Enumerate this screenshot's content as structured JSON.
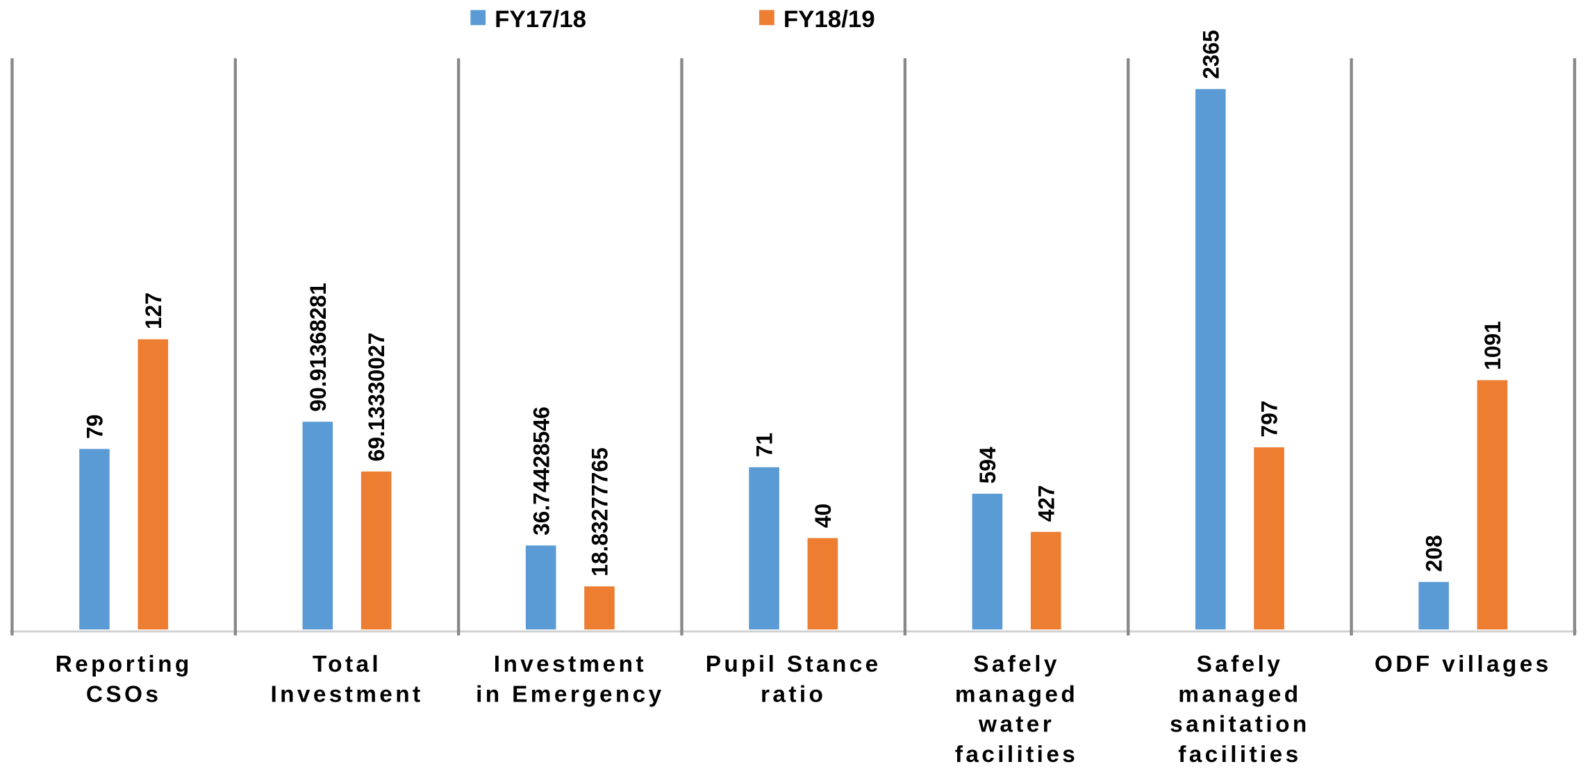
{
  "chart_data": [
    {
      "type": "bar",
      "categories": [
        "Reporting\nCSOs",
        "Total\nInvestment",
        "Investment\nin Emergency",
        "Pupil Stance\nratio"
      ],
      "series": [
        {
          "name": "FY17/18",
          "color": "#5b9bd5",
          "values": [
            79,
            90.91368281,
            36.74428546,
            71
          ]
        },
        {
          "name": "FY18/19",
          "color": "#ed7d31",
          "values": [
            127,
            69.13330027,
            18.83277765,
            40
          ]
        }
      ],
      "ylim": [
        0,
        250
      ]
    },
    {
      "type": "bar",
      "categories": [
        "Safely\nmanaged\nwater\nfacilities",
        "Safely\nmanaged\nsanitation\nfacilities",
        "ODF villages"
      ],
      "series": [
        {
          "name": "FY17/18",
          "color": "#5b9bd5",
          "values": [
            594,
            2365,
            208
          ]
        },
        {
          "name": "FY18/19",
          "color": "#ed7d31",
          "values": [
            427,
            797,
            1091
          ]
        }
      ],
      "ylim": [
        0,
        2500
      ]
    }
  ]
}
